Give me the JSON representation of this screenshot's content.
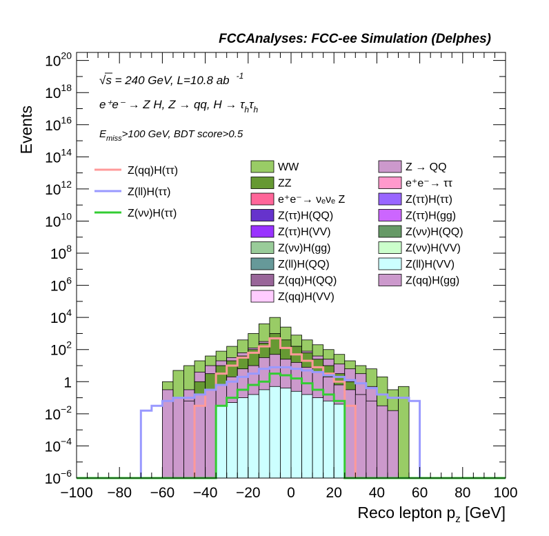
{
  "header": {
    "title": "FCCAnalyses: FCC-ee Simulation (Delphes)"
  },
  "annotations": {
    "energy_sqrt": "√s",
    "energy_rest": " = 240 GeV, L=10.8 ab",
    "energy_exp": "-1",
    "process": "e⁺e⁻ → Z H, Z → qq, H → τ",
    "process_sub1": "h",
    "process_tau2": "τ",
    "process_sub2": "h",
    "selection_E": "E",
    "selection_sub": "miss",
    "selection_rest": ">100 GeV, BDT score>0.5"
  },
  "chart_data": {
    "type": "histogram",
    "xlabel": "Reco lepton p",
    "xlabel_sub": "z",
    "xlabel_unit": " [GeV]",
    "ylabel": "Events",
    "xlim": [
      -100,
      100
    ],
    "ylim_log10": [
      -6,
      20.5
    ],
    "log_y": true,
    "bin_width": 5,
    "x_ticks": [
      "−100",
      "−80",
      "−60",
      "−40",
      "−20",
      "0",
      "20",
      "40",
      "60",
      "80",
      "100"
    ],
    "y_ticks": [
      {
        "exp": -6,
        "base": "10",
        "sup": "−6"
      },
      {
        "exp": -4,
        "base": "10",
        "sup": "−4"
      },
      {
        "exp": -2,
        "base": "10",
        "sup": "−2"
      },
      {
        "exp": 0,
        "base": "1",
        "sup": ""
      },
      {
        "exp": 2,
        "base": "10",
        "sup": "2"
      },
      {
        "exp": 4,
        "base": "10",
        "sup": "4"
      },
      {
        "exp": 6,
        "base": "10",
        "sup": "6"
      },
      {
        "exp": 8,
        "base": "10",
        "sup": "8"
      },
      {
        "exp": 10,
        "base": "10",
        "sup": "10"
      },
      {
        "exp": 12,
        "base": "10",
        "sup": "12"
      },
      {
        "exp": 14,
        "base": "10",
        "sup": "14"
      },
      {
        "exp": 16,
        "base": "10",
        "sup": "16"
      },
      {
        "exp": 18,
        "base": "10",
        "sup": "18"
      },
      {
        "exp": 20,
        "base": "10",
        "sup": "20"
      }
    ],
    "stack_tops": [
      {
        "name": "WW",
        "color": "#99cc66",
        "log10": [
          -99,
          -99,
          -99,
          -99,
          -99,
          -99,
          -99,
          -99,
          0.0,
          0.7,
          1.0,
          1.3,
          1.6,
          1.9,
          2.2,
          2.6,
          3.0,
          3.6,
          4.0,
          3.4,
          2.9,
          2.6,
          2.3,
          2.0,
          1.7,
          1.3,
          1.0,
          0.8,
          0.3,
          -0.5,
          -0.3,
          -99,
          -99,
          -99,
          -99,
          -99,
          -99,
          -99,
          -99,
          -99
        ]
      },
      {
        "name": "Z → QQ",
        "color": "#cc99cc",
        "log10": [
          -99,
          -99,
          -99,
          -99,
          -99,
          -99,
          -99,
          -99,
          -99,
          -99,
          -0.5,
          0.6,
          1.0,
          1.3,
          1.5,
          1.8,
          2.1,
          2.5,
          2.9,
          2.5,
          2.2,
          1.9,
          1.6,
          1.4,
          1.1,
          0.8,
          0.5,
          -0.3,
          -99,
          -99,
          -99,
          -99,
          -99,
          -99,
          -99,
          -99,
          -99,
          -99,
          -99,
          -99
        ]
      },
      {
        "name": "ZZ",
        "color": "#669933",
        "log10": [
          -99,
          -99,
          -99,
          -99,
          -99,
          -99,
          -99,
          -99,
          -99,
          -99,
          -99,
          0.0,
          0.5,
          1.0,
          1.3,
          1.6,
          2.0,
          2.4,
          3.0,
          2.6,
          2.2,
          1.8,
          1.4,
          1.0,
          0.5,
          0.0,
          -99,
          -99,
          -99,
          -99,
          -99,
          -99,
          -99,
          -99,
          -99,
          -99,
          -99,
          -99,
          -99,
          -99
        ]
      },
      {
        "name": "Z(qq)H(gg)",
        "color": "#cc99cc",
        "log10": [
          -99,
          -99,
          -99,
          -99,
          -99,
          -99,
          -99,
          -99,
          -0.5,
          -1.0,
          -1.2,
          -0.8,
          -0.5,
          -0.2,
          0.3,
          0.8,
          1.0,
          1.5,
          1.7,
          1.4,
          1.2,
          0.9,
          0.6,
          0.3,
          -0.2,
          -0.5,
          -0.8,
          -1.2,
          -1.5,
          -1.8,
          -99,
          -99,
          -99,
          -99,
          -99,
          -99,
          -99,
          -99,
          -99,
          -99
        ]
      },
      {
        "name": "Z(ll)H(VV)",
        "color": "#ccffff",
        "log10": [
          -99,
          -99,
          -99,
          -99,
          -99,
          -99,
          -99,
          -99,
          -99,
          -99,
          -99,
          -99,
          -99,
          -1.5,
          -1.3,
          -1.0,
          -0.8,
          -0.5,
          -0.3,
          -0.4,
          -0.6,
          -0.8,
          -1.0,
          -1.2,
          -1.4,
          -99,
          -99,
          -99,
          -99,
          -99,
          -99,
          -99,
          -99,
          -99,
          -99,
          -99,
          -99,
          -99,
          -99,
          -99
        ]
      }
    ],
    "lines": [
      {
        "name": "Z(qq)H(ττ)",
        "color": "#ff9999",
        "log10": [
          -99,
          -99,
          -99,
          -99,
          -99,
          -99,
          -99,
          -99,
          -99,
          -99,
          -99,
          -1.5,
          -0.5,
          0.5,
          1.0,
          1.5,
          1.8,
          2.2,
          2.7,
          2.1,
          1.7,
          1.3,
          0.9,
          0.5,
          0.0,
          -1.5,
          -99,
          -99,
          -99,
          -99,
          -99,
          -99,
          -99,
          -99,
          -99,
          -99,
          -99,
          -99,
          -99,
          -99
        ]
      },
      {
        "name": "Z(ll)H(ττ)",
        "color": "#9999ff",
        "log10": [
          -99,
          -99,
          -99,
          -99,
          -99,
          -99,
          -1.8,
          -1.5,
          -1.2,
          -1.0,
          -1.0,
          -0.8,
          -0.5,
          -0.2,
          0.0,
          0.3,
          0.5,
          0.8,
          0.9,
          0.9,
          0.8,
          0.7,
          0.6,
          0.4,
          0.3,
          0.1,
          -0.1,
          -0.4,
          -0.8,
          -1.0,
          -1.0,
          -1.2,
          -99,
          -99,
          -99,
          -99,
          -99,
          -99,
          -99,
          -99
        ]
      },
      {
        "name": "Z(νν)H(ττ)",
        "color": "#33cc33",
        "log10": [
          -99,
          -99,
          -99,
          -99,
          -99,
          -99,
          -99,
          -99,
          -99,
          -99,
          -99,
          -99,
          -99,
          -1.5,
          -1.0,
          -0.5,
          -0.2,
          0.0,
          0.5,
          0.4,
          0.2,
          -0.1,
          -0.5,
          -0.8,
          -1.2,
          -99,
          -99,
          -99,
          -99,
          -99,
          -99,
          -99,
          -99,
          -99,
          -99,
          -99,
          -99,
          -99,
          -99,
          -99
        ]
      }
    ]
  },
  "legend_lines": [
    {
      "label": "Z(qq)H(ττ)",
      "color": "#ff9999"
    },
    {
      "label": "Z(ll)H(ττ)",
      "color": "#9999ff"
    },
    {
      "label": "Z(νν)H(ττ)",
      "color": "#33cc33"
    }
  ],
  "legend_col1": [
    {
      "label": "WW",
      "color": "#99cc66"
    },
    {
      "label": "ZZ",
      "color": "#669933"
    },
    {
      "label": "e⁺e⁻→ νₑνₑ Z",
      "color": "#ff6699"
    },
    {
      "label": "Z(ττ)H(QQ)",
      "color": "#6633cc"
    },
    {
      "label": "Z(ττ)H(VV)",
      "color": "#9933ff"
    },
    {
      "label": "Z(νν)H(gg)",
      "color": "#99cc99"
    },
    {
      "label": "Z(ll)H(QQ)",
      "color": "#669999"
    },
    {
      "label": "Z(qq)H(QQ)",
      "color": "#996699"
    },
    {
      "label": "Z(qq)H(VV)",
      "color": "#ffccff"
    }
  ],
  "legend_col2": [
    {
      "label": "Z → QQ",
      "color": "#cc99cc"
    },
    {
      "label": "e⁺e⁻→ ττ",
      "color": "#ff99cc"
    },
    {
      "label": "Z(ττ)H(ττ)",
      "color": "#9966ff"
    },
    {
      "label": "Z(ττ)H(gg)",
      "color": "#cc66ff"
    },
    {
      "label": "Z(νν)H(QQ)",
      "color": "#669966"
    },
    {
      "label": "Z(νν)H(VV)",
      "color": "#ccffcc"
    },
    {
      "label": "Z(ll)H(VV)",
      "color": "#ccffff"
    },
    {
      "label": "Z(qq)H(gg)",
      "color": "#cc99cc"
    }
  ]
}
